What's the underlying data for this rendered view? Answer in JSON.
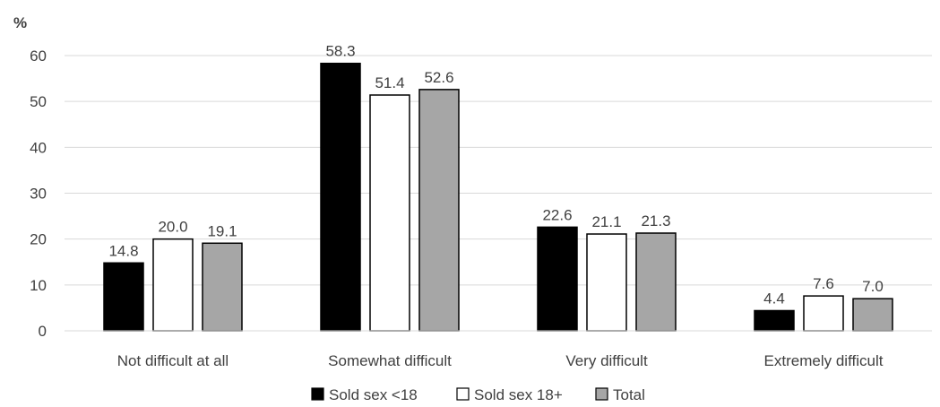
{
  "chart_data": {
    "type": "bar",
    "title": "",
    "ylabel": "%",
    "xlabel": "",
    "ylim": [
      0,
      60
    ],
    "yticks": [
      0,
      10,
      20,
      30,
      40,
      50,
      60
    ],
    "grid": true,
    "legend_position": "bottom",
    "categories": [
      "Not difficult at all",
      "Somewhat difficult",
      "Very difficult",
      "Extremely difficult"
    ],
    "series": [
      {
        "name": "Sold sex <18",
        "values": [
          14.8,
          58.3,
          22.6,
          4.4
        ],
        "labels": [
          "14.8",
          "58.3",
          "22.6",
          "4.4"
        ],
        "color": "#000000"
      },
      {
        "name": "Sold sex 18+",
        "values": [
          20.0,
          51.4,
          21.1,
          7.6
        ],
        "labels": [
          "20.0",
          "51.4",
          "21.1",
          "7.6"
        ],
        "color": "#ffffff"
      },
      {
        "name": "Total",
        "values": [
          19.1,
          52.6,
          21.3,
          7.0
        ],
        "labels": [
          "19.1",
          "52.6",
          "21.3",
          "7.0"
        ],
        "color": "#a6a6a6"
      }
    ]
  }
}
